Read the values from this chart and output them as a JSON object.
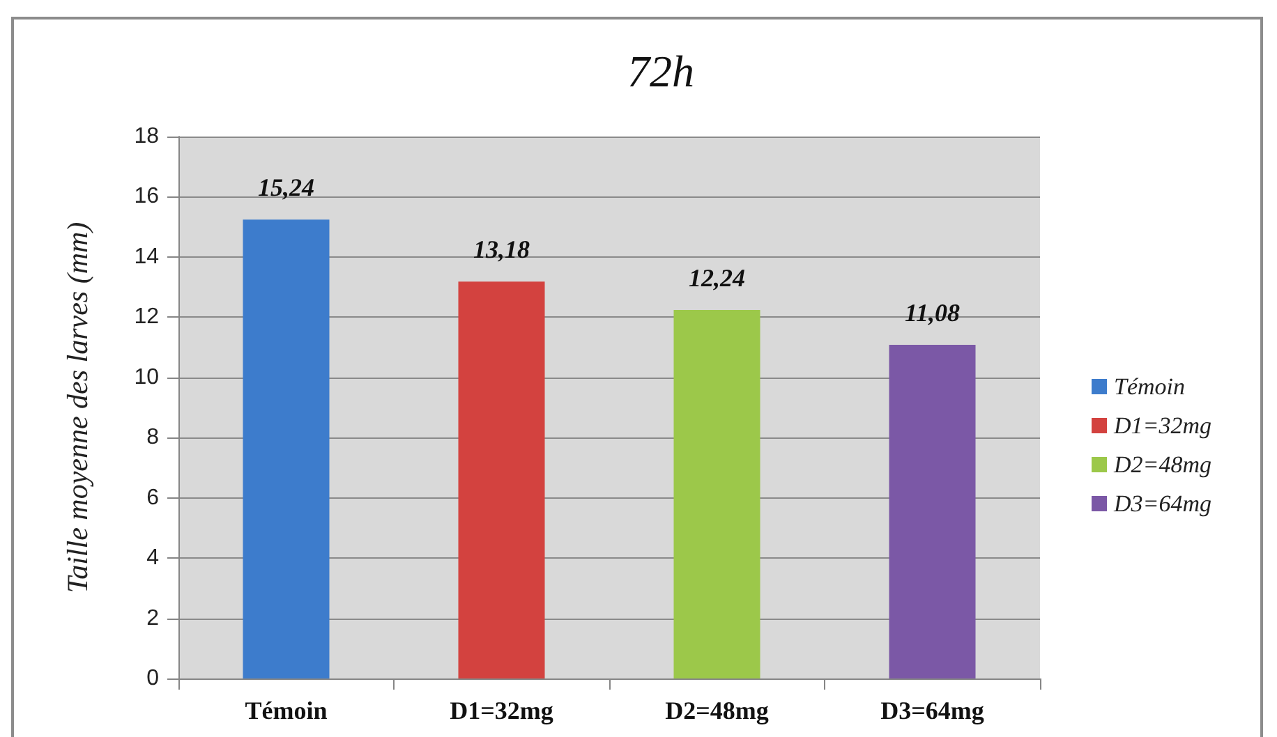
{
  "chart_data": {
    "type": "bar",
    "title": "72h",
    "ylabel": "Taille moyenne des larves (mm)",
    "categories": [
      "Témoin",
      "D1=32mg",
      "D2=48mg",
      "D3=64mg"
    ],
    "series": [
      {
        "name": "Témoin",
        "color": "#3d7ccc",
        "values": [
          15.24,
          null,
          null,
          null
        ],
        "value_labels": [
          "15,24",
          null,
          null,
          null
        ]
      },
      {
        "name": "D1=32mg",
        "color": "#d3423f",
        "values": [
          null,
          13.18,
          null,
          null
        ],
        "value_labels": [
          null,
          "13,18",
          null,
          null
        ]
      },
      {
        "name": "D2=48mg",
        "color": "#9cc84a",
        "values": [
          null,
          null,
          12.24,
          null
        ],
        "value_labels": [
          null,
          null,
          "12,24",
          null
        ]
      },
      {
        "name": "D3=64mg",
        "color": "#7b58a6",
        "values": [
          null,
          null,
          null,
          11.08
        ],
        "value_labels": [
          null,
          null,
          null,
          "11,08"
        ]
      }
    ],
    "ylim": [
      0,
      18
    ],
    "yticks": [
      0,
      2,
      4,
      6,
      8,
      10,
      12,
      14,
      16,
      18
    ],
    "grid": "y",
    "legend": "right"
  }
}
